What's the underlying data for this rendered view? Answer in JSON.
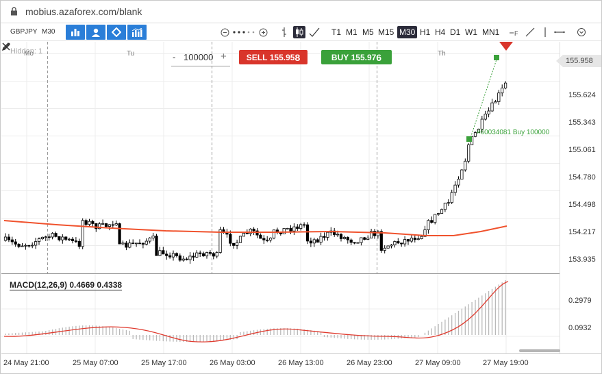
{
  "browser": {
    "url": "mobius.azaforex.com/blank"
  },
  "toolbar": {
    "symbol": "GBPJPY",
    "timeframe": "M30",
    "periods": [
      "T1",
      "M1",
      "M5",
      "M15",
      "M30",
      "H1",
      "H4",
      "D1",
      "W1",
      "MN1"
    ],
    "active_period": "M30"
  },
  "chart": {
    "hidden_label": "Hidden: 1",
    "days": [
      "Mo",
      "Tu",
      "Th"
    ],
    "lot": {
      "minus": "-",
      "value": "100000",
      "plus": "+"
    },
    "sell": {
      "label": "SELL",
      "price_main": "155.95",
      "price_big": "8"
    },
    "buy": {
      "label": "BUY",
      "price_main": "155.97",
      "price_big": "6"
    },
    "current_price": "155.958",
    "y_labels": [
      "155.624",
      "155.343",
      "155.061",
      "154.780",
      "154.498",
      "154.217",
      "153.935"
    ],
    "position_label": "#60034081 Buy 100000",
    "colors": {
      "up_candle": "#ffffff",
      "down_candle": "#000000",
      "ma": "#f0522d",
      "buy": "#3aa13a",
      "sell": "#d9352b"
    }
  },
  "macd": {
    "label": "MACD(12,26,9) 0.4669 0.4338",
    "y_labels": [
      "0.2979",
      "0.0932"
    ]
  },
  "x_labels": [
    "24 May 21:00",
    "25 May 07:00",
    "25 May 17:00",
    "26 May 03:00",
    "26 May 13:00",
    "26 May 23:00",
    "27 May 09:00",
    "27 May 19:00"
  ]
}
